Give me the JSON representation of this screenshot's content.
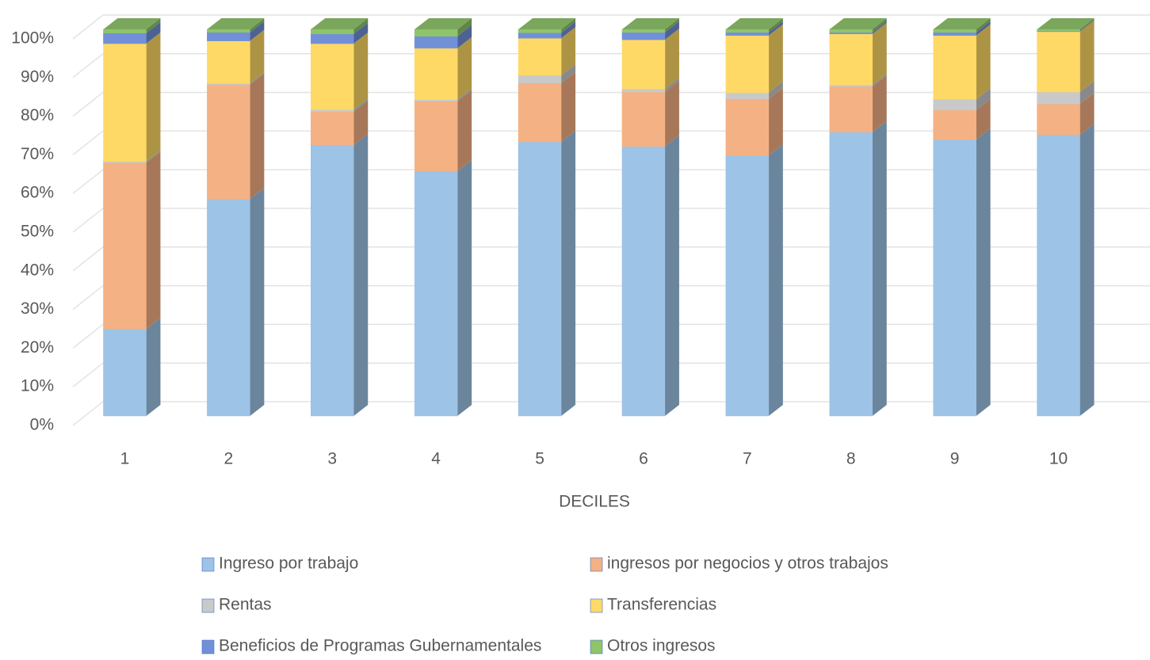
{
  "chart_data": {
    "type": "bar",
    "stacked": true,
    "x_label": "DECILES",
    "categories": [
      "1",
      "2",
      "3",
      "4",
      "5",
      "6",
      "7",
      "8",
      "9",
      "10"
    ],
    "series": [
      {
        "name": "Ingreso por trabajo",
        "color": "#9dc3e6",
        "values": [
          22.5,
          56.1,
          70.1,
          63.3,
          70.9,
          69.7,
          67.4,
          73.4,
          71.5,
          72.7
        ]
      },
      {
        "name": "ingresos por negocios y otros trabajos",
        "color": "#f4b183",
        "values": [
          43,
          29.6,
          8.6,
          18.1,
          15.2,
          14.1,
          14.6,
          11.8,
          7.6,
          8
        ]
      },
      {
        "name": "Rentas",
        "color": "#c9c9c9",
        "values": [
          0.3,
          0.3,
          0.5,
          0.4,
          2,
          0.8,
          1.6,
          0.4,
          2.8,
          3.1
        ]
      },
      {
        "name": "Transferencias",
        "color": "#ffd966",
        "values": [
          30.5,
          11,
          17.1,
          13.3,
          9.6,
          12.7,
          14.8,
          13.2,
          16.5,
          15.6
        ]
      },
      {
        "name": "Beneficios de Programas Gubernamentales",
        "color": "#7190d8",
        "values": [
          2.7,
          2.2,
          2.5,
          3.1,
          1.4,
          1.9,
          0.8,
          0.4,
          0.8,
          0.2
        ]
      },
      {
        "name": "Otros ingresos",
        "color": "#8fc46b",
        "values": [
          1,
          0.8,
          1.2,
          1.8,
          0.9,
          0.8,
          0.8,
          0.8,
          0.8,
          0.4
        ]
      }
    ],
    "ylim": [
      0,
      100
    ],
    "yticks": [
      {
        "value": 0,
        "label": "0%"
      },
      {
        "value": 10,
        "label": "10%"
      },
      {
        "value": 20,
        "label": "20%"
      },
      {
        "value": 30,
        "label": "30%"
      },
      {
        "value": 40,
        "label": "40%"
      },
      {
        "value": 50,
        "label": "50%"
      },
      {
        "value": 60,
        "label": "60%"
      },
      {
        "value": 70,
        "label": "70%"
      },
      {
        "value": 80,
        "label": "80%"
      },
      {
        "value": 90,
        "label": "90%"
      },
      {
        "value": 100,
        "label": "100%"
      }
    ],
    "grid": true
  }
}
